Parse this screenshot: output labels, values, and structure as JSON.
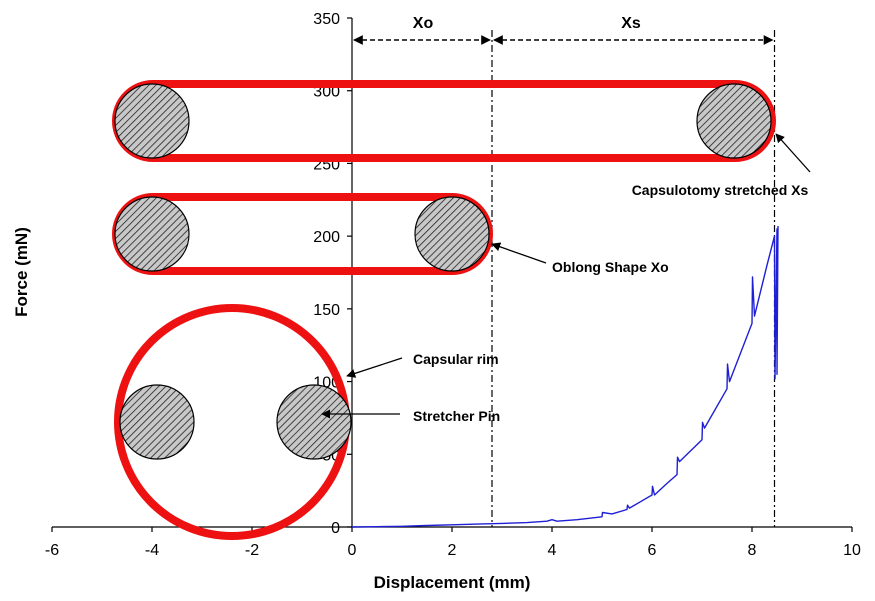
{
  "chart_data": {
    "type": "line",
    "xlabel": "Displacement (mm)",
    "ylabel": "Force (mN)",
    "xlim": [
      -6,
      10
    ],
    "ylim": [
      0,
      350
    ],
    "xticks": [
      -6,
      -4,
      -2,
      0,
      2,
      4,
      6,
      8,
      10
    ],
    "yticks": [
      0,
      50,
      100,
      150,
      200,
      250,
      300,
      350
    ],
    "grid": false,
    "series": [
      {
        "color": "#1f1fd6",
        "x": [
          0,
          0.5,
          1,
          1.5,
          2,
          2.5,
          3,
          3.5,
          3.9,
          4,
          4.1,
          4.5,
          5,
          5.01,
          5.2,
          5.5,
          5.51,
          5.55,
          5.8,
          6,
          6.01,
          6.05,
          6.3,
          6.5,
          6.51,
          6.55,
          7,
          7.01,
          7.05,
          7.5,
          7.51,
          7.55,
          8,
          8.01,
          8.05,
          8.3,
          8.45,
          8.46,
          8.5,
          8.5,
          8.52
        ],
        "y": [
          0,
          0.2,
          0.5,
          1,
          1.5,
          2,
          2.5,
          3,
          4,
          5,
          4,
          5,
          7,
          10,
          9,
          12,
          15,
          13,
          18,
          22,
          28,
          22,
          30,
          36,
          48,
          45,
          60,
          72,
          68,
          95,
          112,
          100,
          140,
          172,
          145,
          180,
          200,
          102,
          205,
          105,
          207
        ]
      }
    ],
    "annotations": {
      "xo_label": "Xo",
      "xs_label": "Xs",
      "capsulotomy_label": "Capsulotomy stretched Xs",
      "oblong_label": "Oblong Shape Xo",
      "rim_label": "Capsular rim",
      "pin_label": "Stretcher Pin",
      "xo_line_x": 2.8,
      "xs_line_x": 8.45,
      "rim_color": "#ee1111",
      "pin_fill_color": "#b0b0b0"
    }
  }
}
